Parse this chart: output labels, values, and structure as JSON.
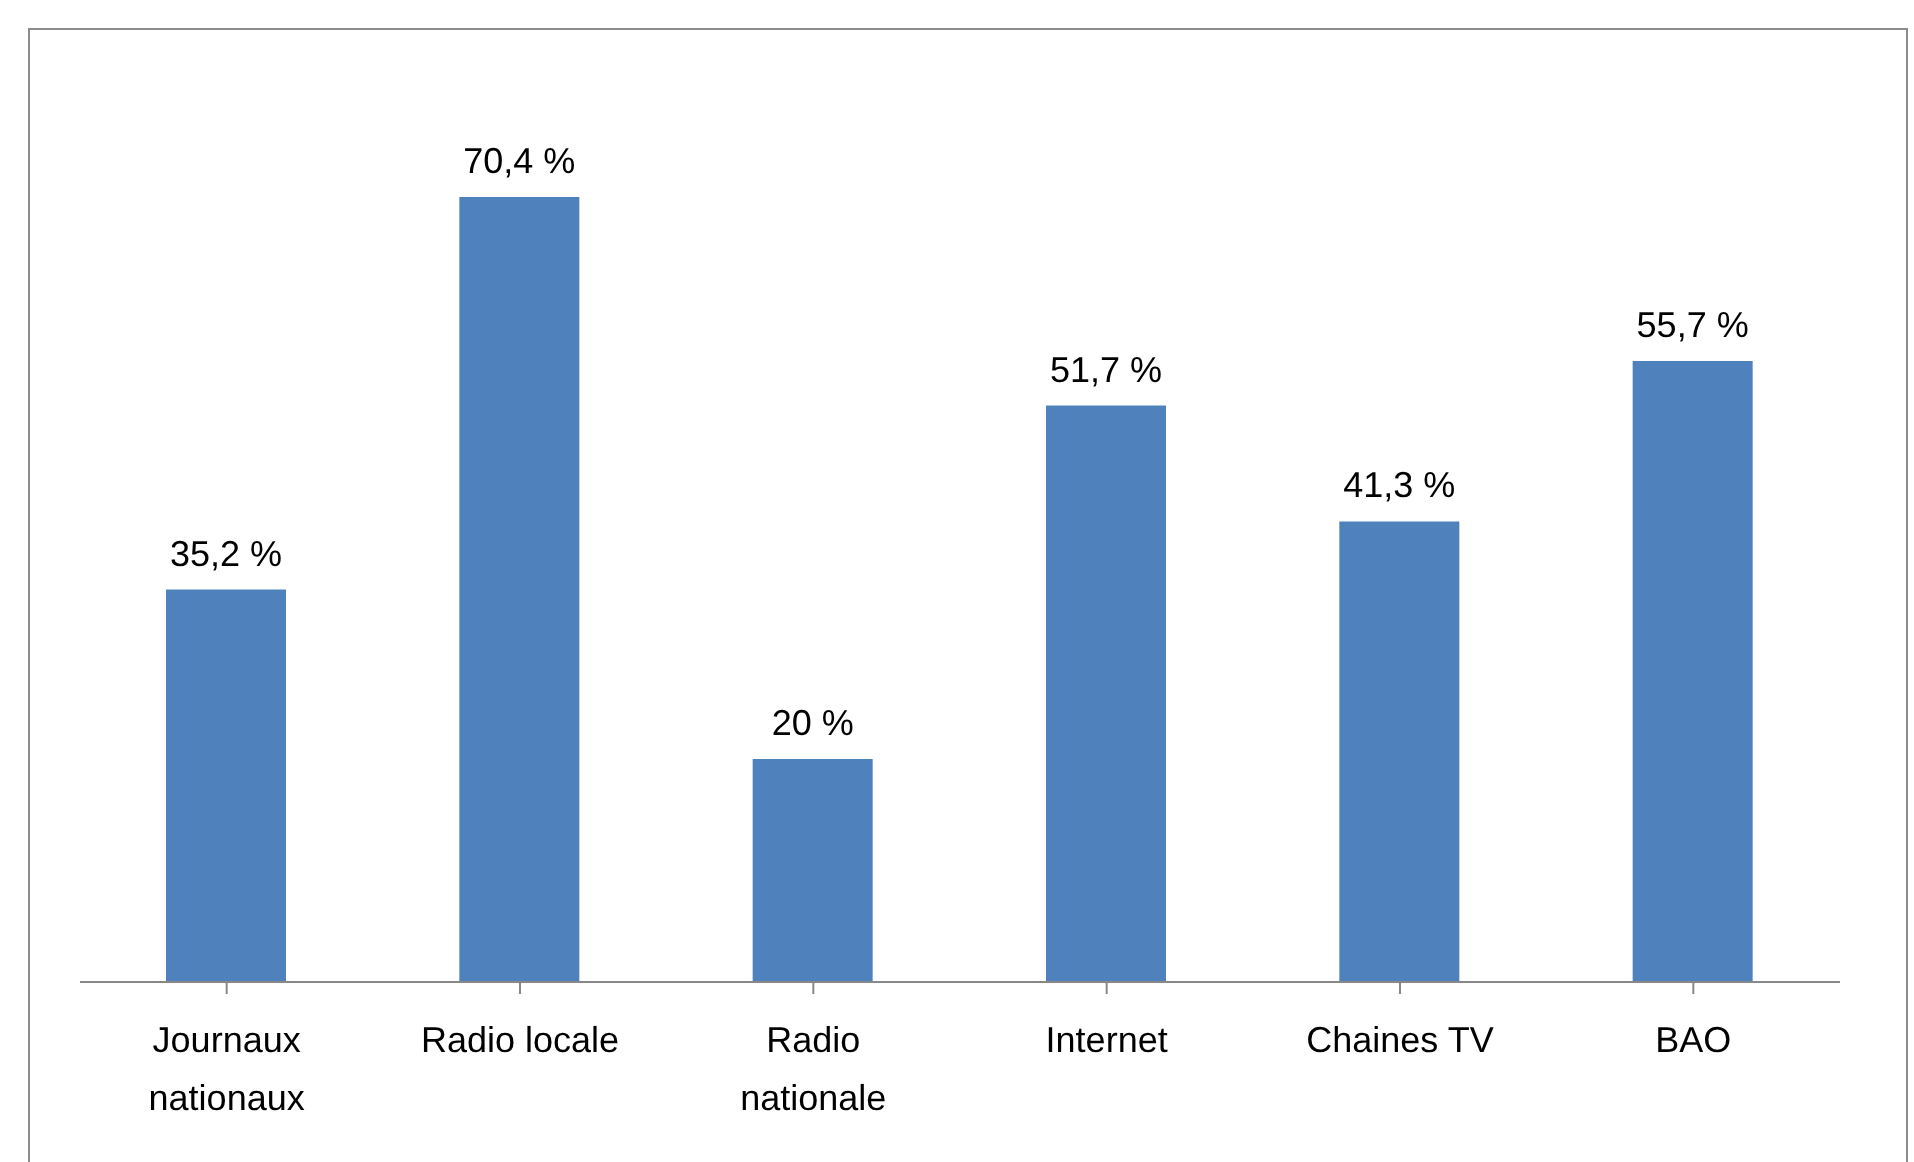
{
  "chart_data": {
    "type": "bar",
    "categories": [
      "Journaux nationaux",
      "Radio locale",
      "Radio nationale",
      "Internet",
      "Chaines TV",
      "BAO"
    ],
    "values": [
      35.2,
      70.4,
      20,
      51.7,
      41.3,
      55.7
    ],
    "value_labels": [
      "35,2 %",
      "70,4 %",
      "20 %",
      "51,7 %",
      "41,3 %",
      "55,7 %"
    ],
    "color": "#4f81bd"
  }
}
